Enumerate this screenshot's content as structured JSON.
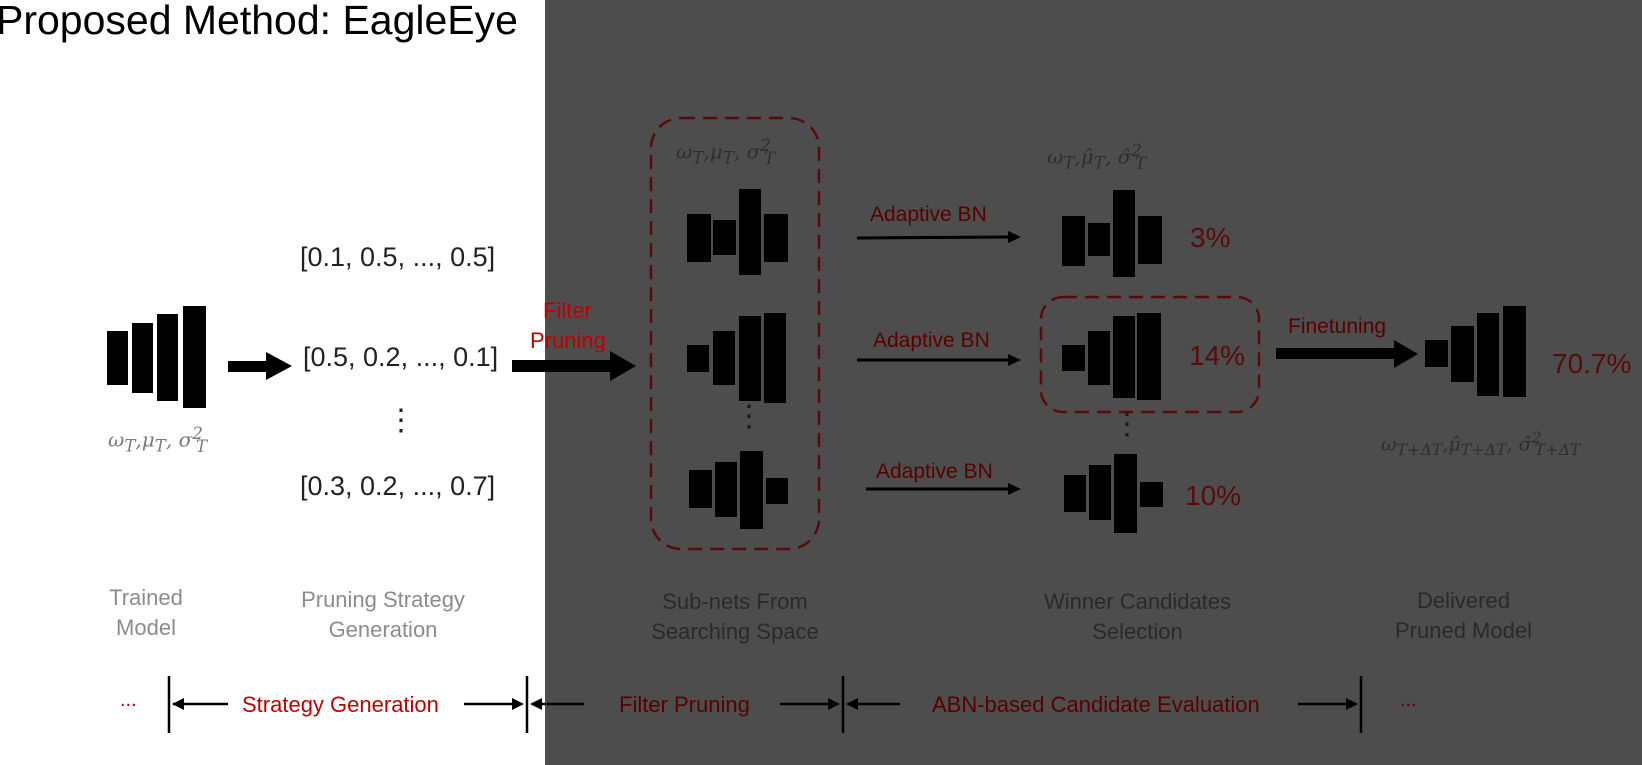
{
  "title": "Proposed Method: EagleEye",
  "strategies": {
    "vectors": [
      "[0.1, 0.5, ..., 0.5]",
      "[0.5, 0.2, ..., 0.1]",
      "[0.3, 0.2, ..., 0.7]"
    ],
    "ellipsis": "⋮"
  },
  "filter_pruning_label_line1": "Filter",
  "filter_pruning_label_line2": "Pruning",
  "adaptive_bn_label": "Adaptive BN",
  "finetuning_label": "Finetuning",
  "accuracies": {
    "candidate_1": "3%",
    "candidate_2": "14%",
    "candidate_3": "10%",
    "final": "70.7%"
  },
  "stages": {
    "trained_model_line1": "Trained",
    "trained_model_line2": "Model",
    "strategy_gen_line1": "Pruning Strategy",
    "strategy_gen_line2": "Generation",
    "subnets_line1": "Sub-nets From",
    "subnets_line2": "Searching Space",
    "winners_line1": "Winner Candidates",
    "winners_line2": "Selection",
    "delivered_line1": "Delivered",
    "delivered_line2": "Pruned Model"
  },
  "timeline": {
    "phases": [
      "Strategy Generation",
      "Filter Pruning",
      "ABN-based Candidate Evaluation"
    ],
    "ellipsis": "..."
  },
  "colors": {
    "background": "#ffffff",
    "overlay": "#4d4d4d",
    "accent_red": "#c00000",
    "dark_red": "#5a0000"
  }
}
